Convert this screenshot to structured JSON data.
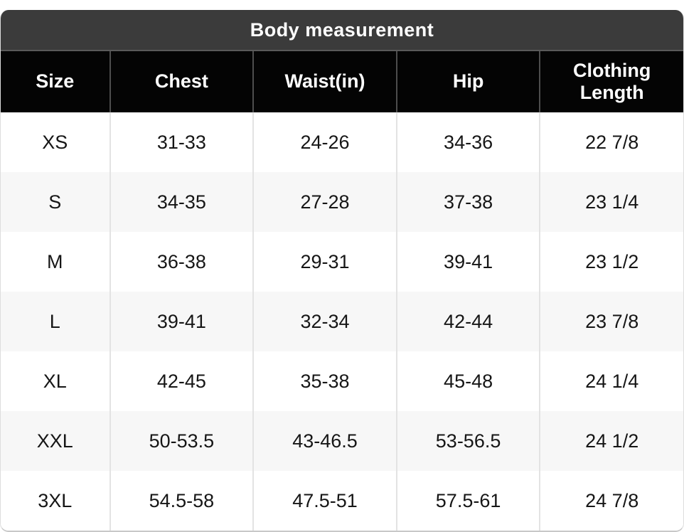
{
  "chart_data": {
    "type": "table",
    "title": "Body measurement",
    "columns": [
      "Size",
      "Chest",
      "Waist(in)",
      "Hip",
      "Clothing Length"
    ],
    "rows": [
      [
        "XS",
        "31-33",
        "24-26",
        "34-36",
        "22 7/8"
      ],
      [
        "S",
        "34-35",
        "27-28",
        "37-38",
        "23 1/4"
      ],
      [
        "M",
        "36-38",
        "29-31",
        "39-41",
        "23 1/2"
      ],
      [
        "L",
        "39-41",
        "32-34",
        "42-44",
        "23 7/8"
      ],
      [
        "XL",
        "42-45",
        "35-38",
        "45-48",
        "24 1/4"
      ],
      [
        "XXL",
        "50-53.5",
        "43-46.5",
        "53-56.5",
        "24 1/2"
      ],
      [
        "3XL",
        "54.5-58",
        "47.5-51",
        "57.5-61",
        "24 7/8"
      ]
    ],
    "layout": {
      "units": "inches",
      "header_position": "top",
      "row_striping": "alternating"
    }
  },
  "colors": {
    "title_bar_bg": "#3b3b3b",
    "header_bg": "#040404",
    "header_text": "#ffffff",
    "header_separator": "#4d4d4d",
    "row_bg": "#ffffff",
    "row_alt_bg": "#f7f7f7",
    "row_separator": "#e3e3e3",
    "body_text": "#161616",
    "card_border": "#c8c8c8"
  }
}
